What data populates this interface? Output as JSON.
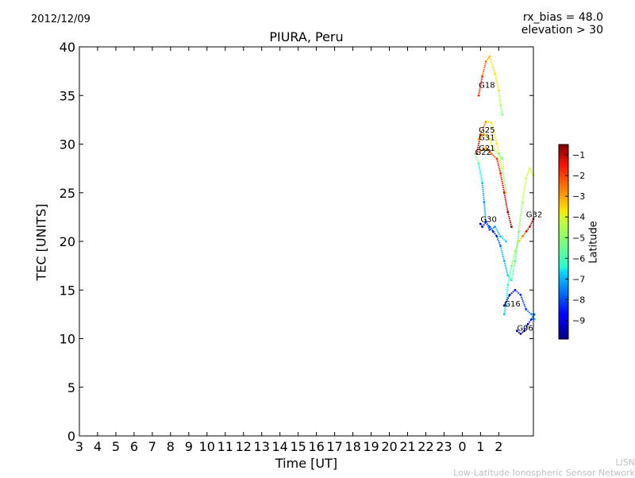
{
  "header": {
    "date": "2012/12/09",
    "bias_line1": "rx_bias = 48.0",
    "bias_line2": "elevation > 30"
  },
  "footer": {
    "credit_line1": "LISN",
    "credit_line2": "Low-Latitude Ionospheric Sensor Network"
  },
  "colorbar": {
    "label": "Latitude",
    "ticks": [
      "−1",
      "−2",
      "−3",
      "−4",
      "−5",
      "−6",
      "−7",
      "−8",
      "−9"
    ],
    "tick_values": [
      -1,
      -2,
      -3,
      -4,
      -5,
      -6,
      -7,
      -8,
      -9
    ],
    "range": [
      -9.9,
      -0.5
    ],
    "colormap": "jet"
  },
  "chart_data": {
    "type": "scatter",
    "title": "PIURA, Peru",
    "xlabel": "Time [UT]",
    "ylabel": "TEC [UNITS]",
    "x_tick_labels": [
      "3",
      "4",
      "5",
      "6",
      "7",
      "8",
      "9",
      "10",
      "11",
      "12",
      "13",
      "14",
      "15",
      "16",
      "17",
      "18",
      "19",
      "20",
      "21",
      "22",
      "23",
      "0",
      "1",
      "2"
    ],
    "x_range_hours": [
      3,
      27.9
    ],
    "ylim": [
      0,
      40
    ],
    "y_ticks": [
      0,
      5,
      10,
      15,
      20,
      25,
      30,
      35,
      40
    ],
    "grid": false,
    "series": [
      {
        "name": "G18",
        "label_at": [
          0.9,
          35.8
        ],
        "lat": [
          -2.0,
          -2.5,
          -3.2,
          -3.8,
          -4.6,
          -5.2
        ],
        "x": [
          0.9,
          1.1,
          1.3,
          1.5,
          1.8,
          2.0,
          2.1,
          2.2
        ],
        "y": [
          35.0,
          37.0,
          38.5,
          39.0,
          37.2,
          35.5,
          34.0,
          33.0
        ]
      },
      {
        "name": "G25",
        "label_at": [
          0.9,
          31.2
        ],
        "lat": [
          -1.2,
          -2.8,
          -3.8,
          -4.2,
          -5.0
        ],
        "x": [
          0.8,
          1.0,
          1.3,
          1.6,
          1.9,
          2.2,
          2.4
        ],
        "y": [
          29.0,
          31.0,
          32.3,
          32.2,
          30.0,
          27.5,
          25.0
        ]
      },
      {
        "name": "G31",
        "label_at": [
          0.9,
          30.4
        ],
        "lat": [
          -3.0,
          -3.6,
          -4.2,
          -4.8,
          -5.4
        ],
        "x": [
          0.9,
          1.2,
          1.5,
          1.7,
          2.0,
          2.2
        ],
        "y": [
          30.5,
          31.0,
          30.5,
          29.5,
          29.0,
          28.5
        ]
      },
      {
        "name": "G21",
        "label_at": [
          0.9,
          29.3
        ],
        "lat": [
          -3.2,
          -2.8,
          -2.4,
          -1.8,
          -1.2,
          -0.8
        ],
        "x": [
          1.0,
          1.3,
          1.6,
          1.9,
          2.1,
          2.3,
          2.5,
          2.7
        ],
        "y": [
          29.3,
          29.6,
          29.0,
          28.5,
          27.0,
          25.0,
          23.0,
          21.5
        ]
      },
      {
        "name": "G22",
        "label_at": [
          0.7,
          28.9
        ],
        "lat": [
          -5.2,
          -6.4,
          -7.2,
          -8.0,
          -8.5,
          -8.0,
          -7.0,
          -6.2,
          -5.6,
          -5.0,
          -4.6,
          -4.2
        ],
        "x": [
          0.7,
          0.9,
          1.1,
          1.2,
          1.3,
          1.5,
          1.7,
          1.9,
          2.1,
          2.3,
          2.5,
          2.7,
          2.9,
          3.1,
          3.3,
          3.5,
          3.7,
          3.9
        ],
        "y": [
          29.0,
          28.0,
          26.0,
          24.0,
          22.0,
          21.5,
          21.0,
          20.5,
          19.5,
          18.0,
          16.5,
          16.0,
          18.0,
          21.0,
          24.0,
          26.5,
          27.5,
          26.8
        ]
      },
      {
        "name": "G30",
        "label_at": [
          1.0,
          22.0
        ],
        "lat": [
          -9.2,
          -8.6,
          -8.0,
          -7.4,
          -7.0,
          -6.6
        ],
        "x": [
          1.0,
          1.1,
          1.3,
          1.5,
          1.8,
          2.1,
          2.4
        ],
        "y": [
          21.8,
          21.5,
          22.0,
          21.2,
          21.5,
          20.5,
          20.0
        ]
      },
      {
        "name": "G32",
        "label_at": [
          3.5,
          22.5
        ],
        "lat": [
          -0.9,
          -1.6,
          -2.6,
          -3.6,
          -4.8,
          -5.6,
          -6.3,
          -6.8
        ],
        "x": [
          3.9,
          3.7,
          3.5,
          3.3,
          3.1,
          2.9,
          2.7,
          2.5,
          2.4,
          2.3
        ],
        "y": [
          22.3,
          21.5,
          21.0,
          20.5,
          20.0,
          19.0,
          17.5,
          15.5,
          13.5,
          12.5
        ]
      },
      {
        "name": "G16",
        "label_at": [
          2.3,
          13.3
        ],
        "lat": [
          -9.4,
          -8.8,
          -8.2,
          -7.6,
          -7.0
        ],
        "x": [
          2.3,
          2.6,
          2.9,
          3.2,
          3.5,
          3.8,
          3.95
        ],
        "y": [
          13.4,
          14.5,
          15.0,
          14.5,
          13.0,
          12.5,
          12.0
        ]
      },
      {
        "name": "G06",
        "label_at": [
          3.0,
          10.8
        ],
        "lat": [
          -9.6,
          -9.2,
          -8.6,
          -8.0
        ],
        "x": [
          3.0,
          3.2,
          3.4,
          3.6,
          3.8,
          3.95
        ],
        "y": [
          10.8,
          10.5,
          10.8,
          11.5,
          12.0,
          12.5
        ]
      }
    ]
  }
}
